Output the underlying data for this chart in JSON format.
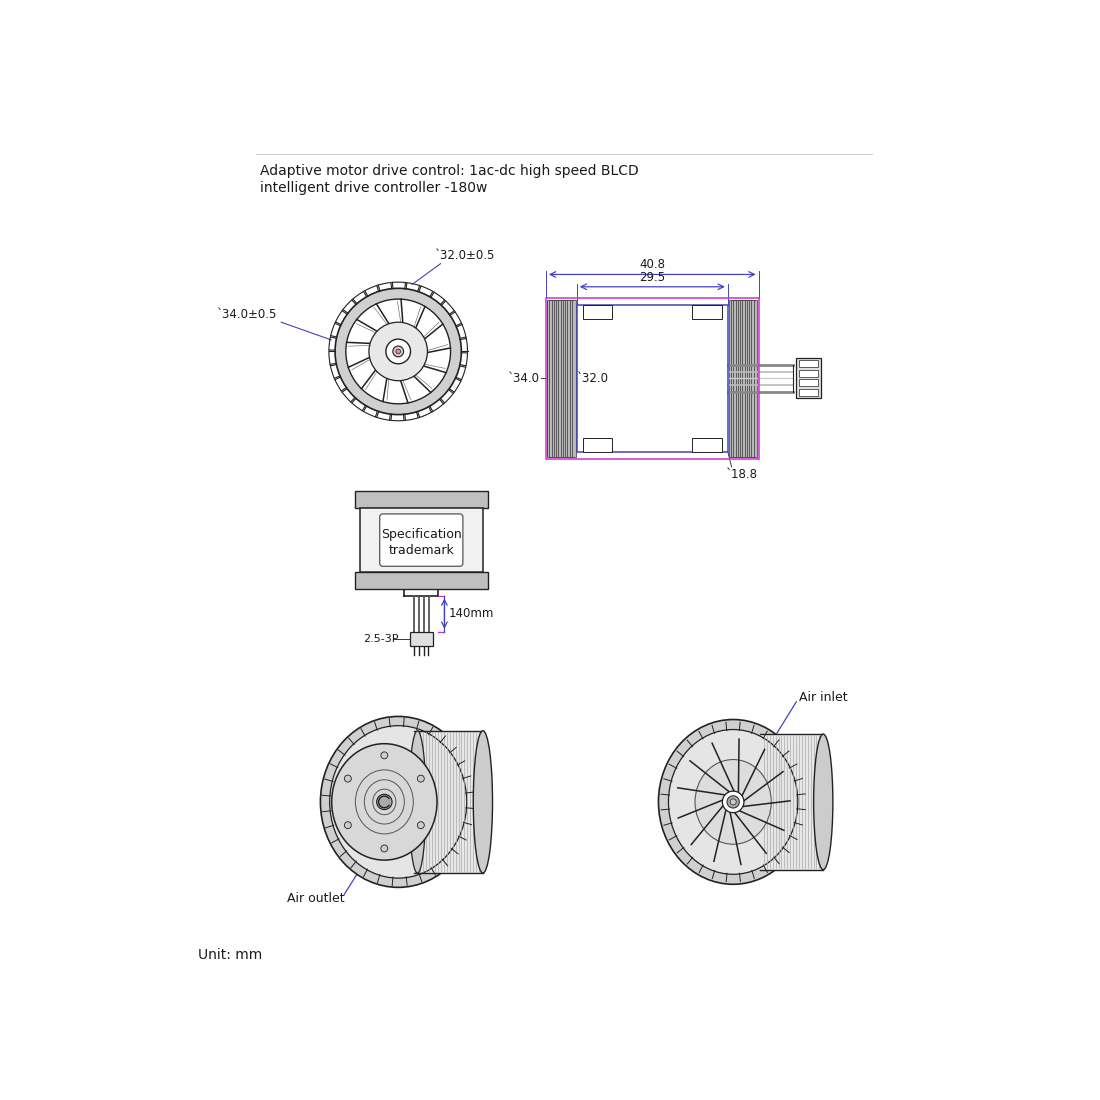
{
  "bg_color": "#ffffff",
  "text_color": "#1a1a1a",
  "dim_color_blue": "#4444bb",
  "dim_color_magenta": "#cc33cc",
  "title_line1": "Adaptive motor drive control: 1ac-dc high speed BLCD",
  "title_line2": "intelligent drive controller -180w",
  "unit_text": "Unit: mm",
  "spec_text1": "Specification",
  "spec_text2": "trademark",
  "dim_408": "40.8",
  "dim_295": "29.5",
  "dim_340": "̀34.0",
  "dim_320": "̀32.0",
  "dim_188": "̀18.8",
  "dim_d340": "̀34.0±0.5",
  "dim_d320": "̀32.0±0.5",
  "dim_140": "140mm",
  "dim_253p": "2.5-3P",
  "air_inlet": "Air inlet",
  "air_outlet": "Air outlet"
}
